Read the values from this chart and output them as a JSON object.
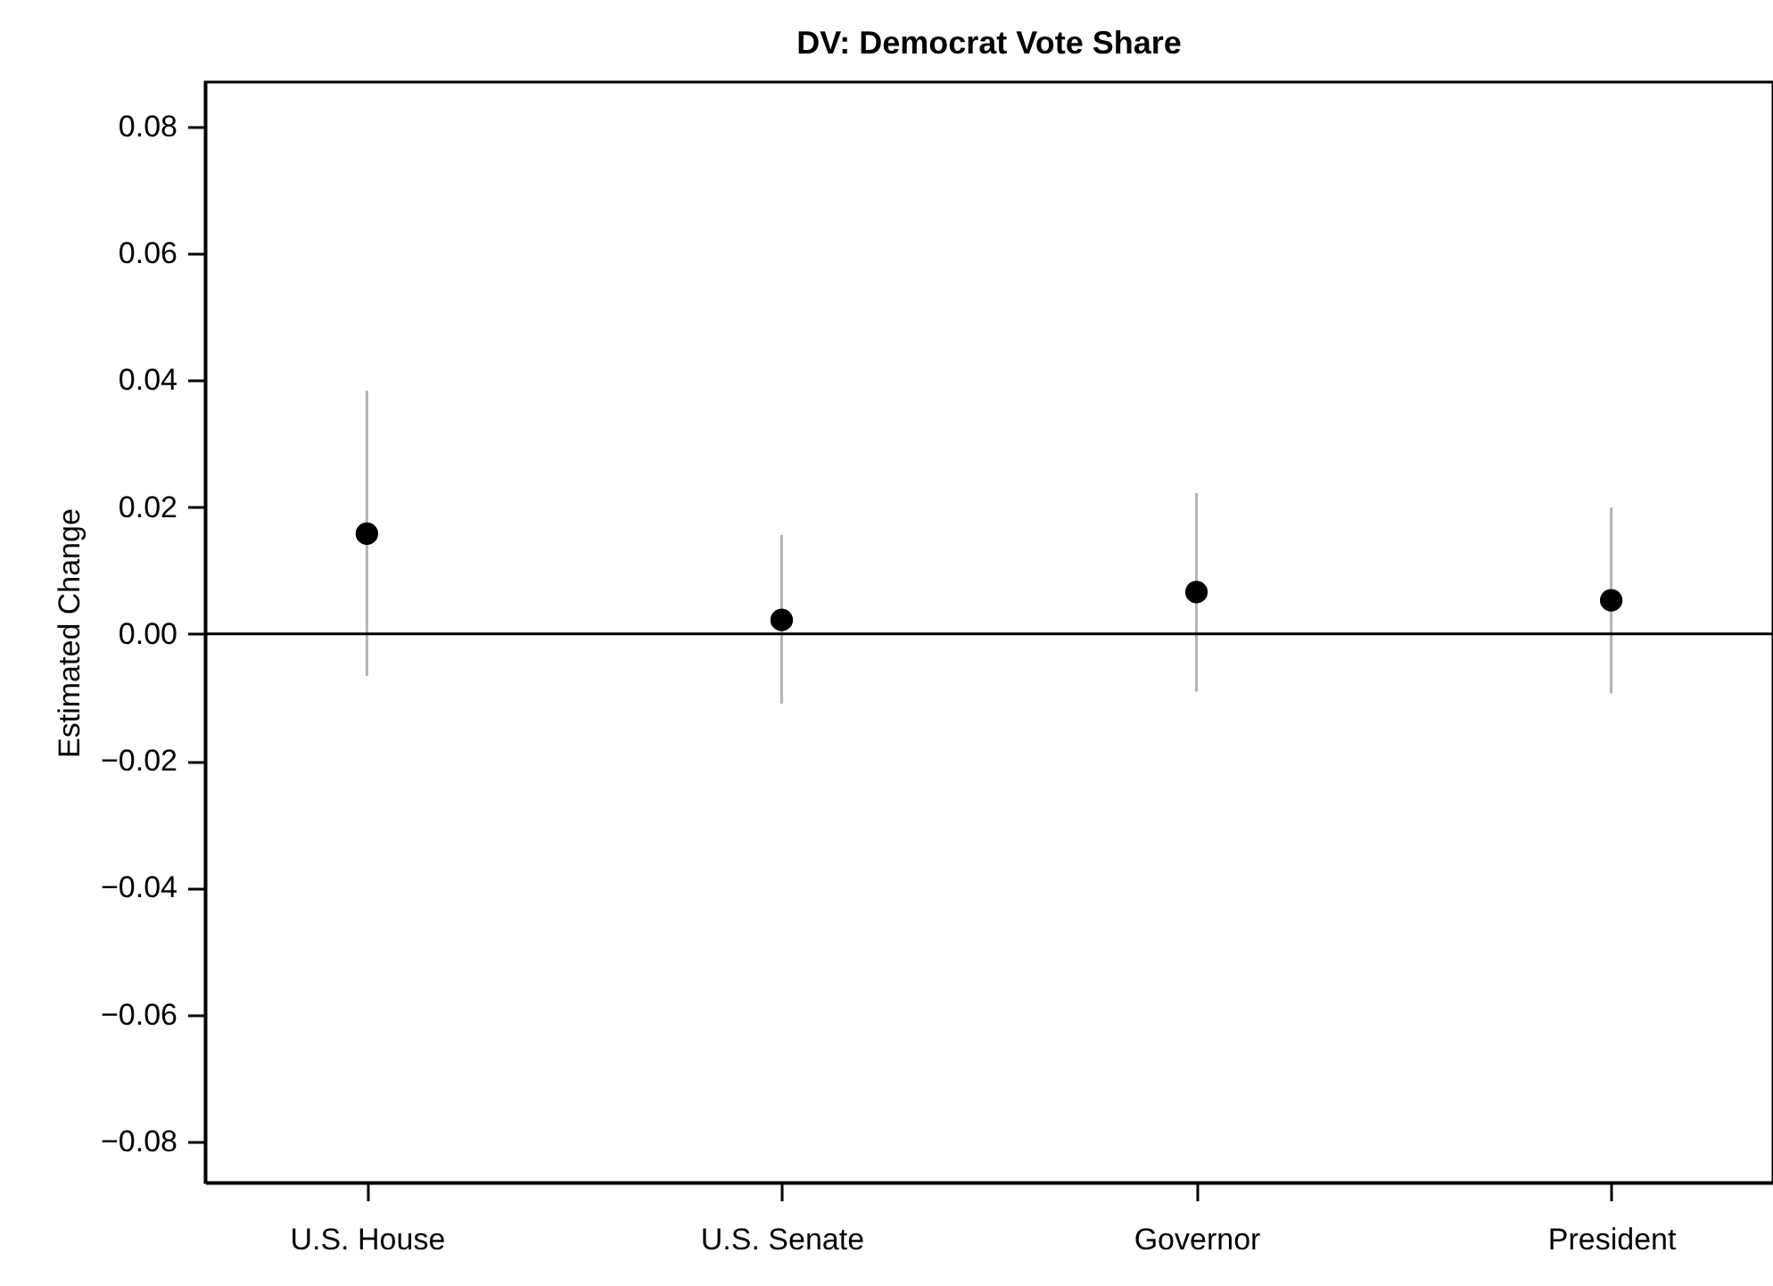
{
  "chart_data": {
    "type": "scatter",
    "title": "DV: Democrat Vote Share",
    "ylabel": "Estimated Change",
    "categories": [
      "U.S. House",
      "U.S. Senate",
      "Governor",
      "President"
    ],
    "series": [
      {
        "color": "#000000",
        "values": [
          0.0158,
          0.0022,
          0.0066,
          0.0053
        ],
        "errors": [
          [
            -0.0066,
            0.0383
          ],
          [
            -0.011,
            0.0156
          ],
          [
            -0.0091,
            0.0222
          ],
          [
            -0.0094,
            0.0199
          ]
        ]
      }
    ],
    "ylim": [
      -0.0865,
      0.087
    ],
    "yticks": [
      {
        "value": -0.08,
        "label": "−0.08"
      },
      {
        "value": -0.06,
        "label": "−0.06"
      },
      {
        "value": -0.04,
        "label": "−0.04"
      },
      {
        "value": -0.02,
        "label": "−0.02"
      },
      "0.00",
      "0.02",
      "0.04",
      "0.06",
      "0.08"
    ],
    "ref_lines": [
      {
        "axis": "y",
        "value": 0,
        "color": "#000000"
      }
    ],
    "marker": "circle"
  }
}
